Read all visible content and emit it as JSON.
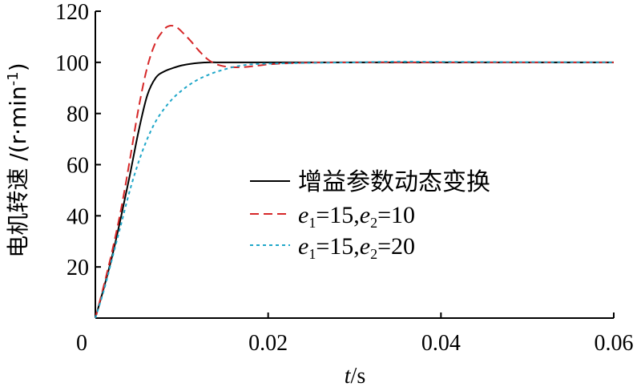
{
  "chart_data": {
    "type": "line",
    "title": "",
    "xlabel": {
      "var": "t",
      "unit": "/s"
    },
    "ylabel": {
      "prefix": "电机转速 /(r·min",
      "sup": "-1",
      "suffix": ")"
    },
    "xlim": [
      0,
      0.06
    ],
    "ylim": [
      0,
      120
    ],
    "x_ticks": [
      {
        "value": 0,
        "label": "0"
      },
      {
        "value": 0.02,
        "label": "0.02"
      },
      {
        "value": 0.04,
        "label": "0.04"
      },
      {
        "value": 0.06,
        "label": "0.06"
      }
    ],
    "y_ticks": [
      {
        "value": 20,
        "label": "20"
      },
      {
        "value": 40,
        "label": "40"
      },
      {
        "value": 60,
        "label": "60"
      },
      {
        "value": 80,
        "label": "80"
      },
      {
        "value": 100,
        "label": "100"
      },
      {
        "value": 120,
        "label": "120"
      }
    ],
    "grid": false,
    "legend_position": "center-right",
    "series": [
      {
        "name": "增益参数动态变换",
        "color": "#000000",
        "style": "solid",
        "x": [
          0,
          0.001,
          0.002,
          0.003,
          0.004,
          0.005,
          0.006,
          0.007,
          0.008,
          0.009,
          0.01,
          0.011,
          0.012,
          0.013,
          0.014,
          0.015,
          0.016,
          0.02,
          0.03,
          0.04,
          0.05,
          0.06
        ],
        "y": [
          0,
          12,
          25,
          40,
          56,
          73,
          87,
          94,
          96.5,
          97.8,
          98.8,
          99.4,
          99.8,
          100,
          100,
          100,
          100,
          100,
          100,
          100,
          100,
          100
        ]
      },
      {
        "name": "e1=15,e2=10",
        "legend_parts": {
          "e": "e",
          "s1": "1",
          "mid": "=15,",
          "s2": "2",
          "end": "=10"
        },
        "color": "#d62728",
        "style": "dashed",
        "x": [
          0,
          0.001,
          0.002,
          0.003,
          0.004,
          0.005,
          0.006,
          0.007,
          0.008,
          0.0085,
          0.009,
          0.0095,
          0.01,
          0.011,
          0.012,
          0.013,
          0.014,
          0.015,
          0.016,
          0.017,
          0.018,
          0.019,
          0.02,
          0.022,
          0.025,
          0.03,
          0.04,
          0.05,
          0.06
        ],
        "y": [
          0,
          13,
          27,
          43,
          62,
          82,
          98,
          108,
          113,
          114.2,
          114.3,
          113.5,
          112,
          108.5,
          104.5,
          101.2,
          99.3,
          98.4,
          98.1,
          98.1,
          98.4,
          98.8,
          99.2,
          99.6,
          99.9,
          100,
          100,
          100,
          100
        ]
      },
      {
        "name": "e1=15,e2=20",
        "legend_parts": {
          "e": "e",
          "s1": "1",
          "mid": "=15,",
          "s2": "2",
          "end": "=20"
        },
        "color": "#1fa7c9",
        "style": "dotted",
        "x": [
          0,
          0.001,
          0.002,
          0.003,
          0.004,
          0.005,
          0.006,
          0.007,
          0.008,
          0.009,
          0.01,
          0.011,
          0.012,
          0.013,
          0.014,
          0.015,
          0.016,
          0.017,
          0.018,
          0.02,
          0.025,
          0.03,
          0.035,
          0.04,
          0.05,
          0.06
        ],
        "y": [
          0,
          11,
          24,
          37,
          50,
          61,
          70,
          77,
          82,
          86,
          89,
          91.5,
          93.5,
          95,
          96.3,
          97.3,
          98.2,
          98.8,
          99.2,
          99.5,
          99.8,
          100,
          100.3,
          100.2,
          100.1,
          100
        ]
      }
    ]
  }
}
